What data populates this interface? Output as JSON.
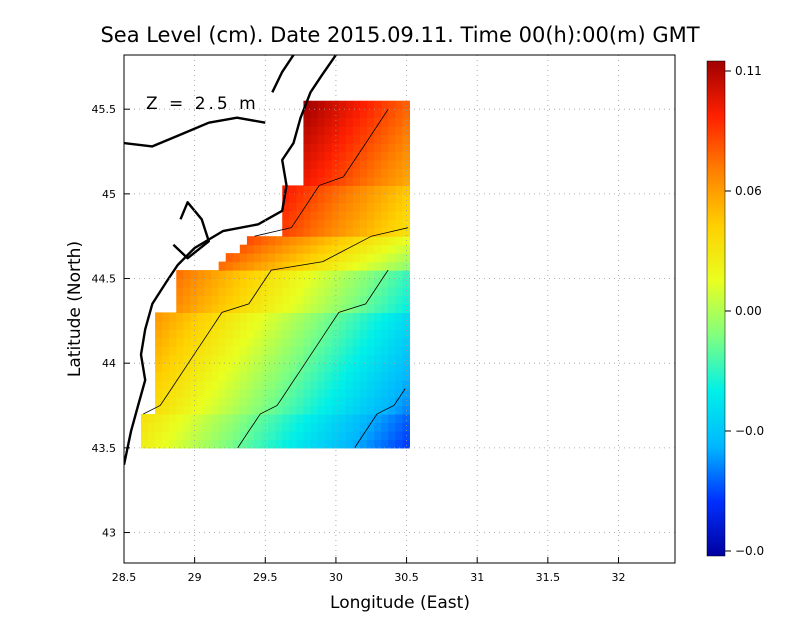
{
  "chart_data": {
    "type": "heatmap",
    "title": "Sea Level (cm). Date 2015.09.11. Time 00(h):00(m) GMT",
    "annotation": "Z = 2.5 m",
    "xlabel": "Longitude (East)",
    "ylabel": "Latitude (North)",
    "xlim": [
      28.5,
      32.4
    ],
    "ylim": [
      42.82,
      45.82
    ],
    "x_ticks": [
      "28.5",
      "29",
      "29.5",
      "30",
      "30.5",
      "31",
      "31.5",
      "32"
    ],
    "y_ticks": [
      "43",
      "43.5",
      "44",
      "44.5",
      "45",
      "45.5"
    ],
    "grid": true,
    "grid_style": "dotted",
    "colorbar": {
      "position": "right",
      "labels": [
        "0.11",
        "0.06",
        "0.00",
        "−0.0",
        "−0.0"
      ],
      "colors": [
        "#0000a0",
        "#0030ff",
        "#00b8ff",
        "#00f0e8",
        "#80ff80",
        "#e8ff20",
        "#ffd000",
        "#ff8000",
        "#ff2000",
        "#a00000"
      ]
    },
    "field_extent": {
      "lon": [
        28.62,
        30.52
      ],
      "lat": [
        43.5,
        45.5
      ]
    },
    "field_model": {
      "min": -0.08,
      "max": 0.11,
      "description_values": "sea level anomaly decreasing offshore from Black Sea NW coast"
    },
    "contour_levels": [
      0.08,
      0.04,
      0.0,
      -0.04
    ],
    "coastline": {
      "mainland": [
        [
          28.5,
          43.4
        ],
        [
          28.55,
          43.6
        ],
        [
          28.6,
          43.75
        ],
        [
          28.65,
          43.9
        ],
        [
          28.62,
          44.05
        ],
        [
          28.65,
          44.2
        ],
        [
          28.7,
          44.35
        ],
        [
          28.8,
          44.48
        ],
        [
          28.88,
          44.58
        ],
        [
          29.0,
          44.68
        ],
        [
          29.2,
          44.78
        ],
        [
          29.45,
          44.82
        ],
        [
          29.62,
          44.9
        ],
        [
          29.65,
          45.05
        ],
        [
          29.62,
          45.2
        ],
        [
          29.7,
          45.3
        ],
        [
          29.75,
          45.45
        ],
        [
          29.82,
          45.6
        ],
        [
          29.9,
          45.7
        ],
        [
          30.0,
          45.82
        ]
      ],
      "lake_razim": [
        [
          28.85,
          44.7
        ],
        [
          28.95,
          44.62
        ],
        [
          29.1,
          44.72
        ],
        [
          29.05,
          44.85
        ],
        [
          28.95,
          44.95
        ],
        [
          28.9,
          44.85
        ]
      ],
      "danube_delta": [
        [
          28.5,
          45.3
        ],
        [
          28.7,
          45.28
        ],
        [
          28.9,
          45.35
        ],
        [
          29.1,
          45.42
        ],
        [
          29.3,
          45.45
        ],
        [
          29.5,
          45.42
        ]
      ],
      "dniester_liman": [
        [
          29.55,
          45.6
        ],
        [
          29.62,
          45.72
        ],
        [
          29.7,
          45.82
        ]
      ]
    }
  }
}
